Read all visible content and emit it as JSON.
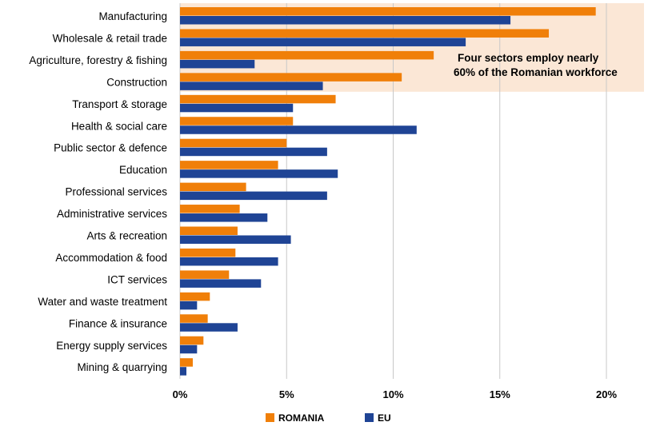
{
  "chart_data": {
    "type": "bar",
    "orientation": "horizontal",
    "categories": [
      "Manufacturing",
      "Wholesale & retail trade",
      "Agriculture, forestry & fishing",
      "Construction",
      "Transport & storage",
      "Health & social care",
      "Public sector & defence",
      "Education",
      "Professional services",
      "Administrative services",
      "Arts & recreation",
      "Accommodation & food",
      "ICT services",
      "Water and waste treatment",
      "Finance & insurance",
      "Energy supply services",
      "Mining & quarrying"
    ],
    "series": [
      {
        "name": "ROMANIA",
        "color": "#F07F09",
        "values": [
          19.5,
          17.3,
          11.9,
          10.4,
          7.3,
          5.3,
          5.0,
          4.6,
          3.1,
          2.8,
          2.7,
          2.6,
          2.3,
          1.4,
          1.3,
          1.1,
          0.6
        ]
      },
      {
        "name": "EU",
        "color": "#1F4495",
        "values": [
          15.5,
          13.4,
          3.5,
          6.7,
          5.3,
          11.1,
          6.9,
          7.4,
          6.9,
          4.1,
          5.2,
          4.6,
          3.8,
          0.8,
          2.7,
          0.8,
          0.3
        ]
      }
    ],
    "xlim": [
      0,
      20
    ],
    "xticks": [
      "0%",
      "5%",
      "10%",
      "15%",
      "20%"
    ],
    "grid": true,
    "legend": "bottom",
    "annotation": {
      "text_line1": "Four sectors employ nearly",
      "text_line2": "60% of the Romanian workforce",
      "highlight_color": "#FBE7D6",
      "highlight_categories": 4
    }
  }
}
